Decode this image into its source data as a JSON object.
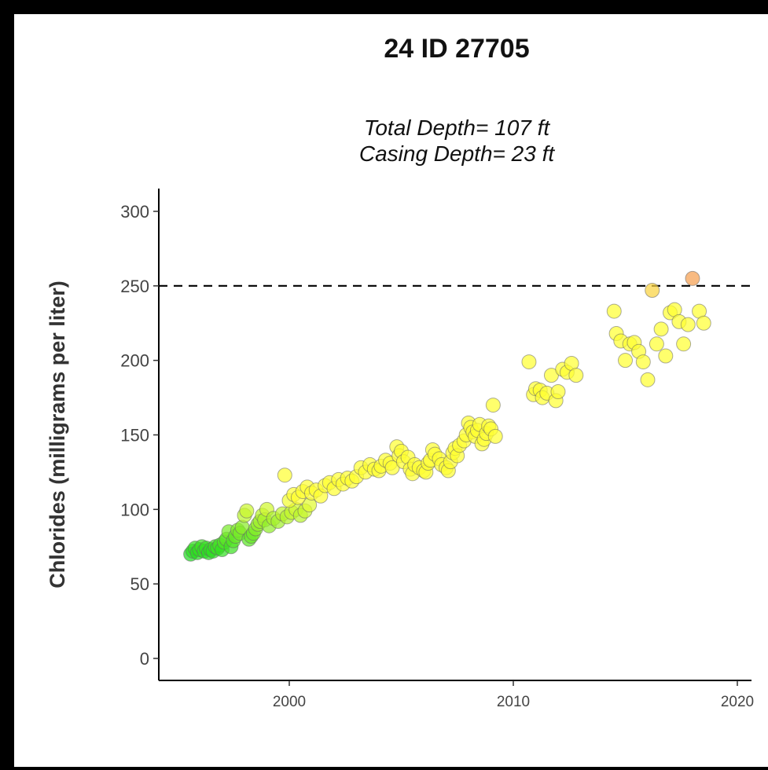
{
  "chart_data": {
    "type": "scatter",
    "title": "24 ID 27705",
    "subtitle_lines": [
      "Total Depth= 107 ft",
      "Casing Depth= 23 ft"
    ],
    "xlabel": "",
    "ylabel": "Chlorides (milligrams per liter)",
    "xlim": [
      1994.3,
      2021.0
    ],
    "ylim": [
      0,
      300
    ],
    "x_ticks": [
      2000,
      2010,
      2020
    ],
    "y_ticks": [
      0,
      50,
      100,
      150,
      200,
      250,
      300
    ],
    "reference_line": {
      "y": 250,
      "style": "dashed",
      "color": "#000000"
    },
    "color_scale": {
      "low": 70,
      "high": 255,
      "colors": [
        "#22dd22",
        "#ffff33",
        "#f5a050"
      ]
    },
    "grid": false,
    "legend": "none",
    "points": [
      [
        1995.6,
        70
      ],
      [
        1995.7,
        72
      ],
      [
        1995.8,
        74
      ],
      [
        1995.9,
        71
      ],
      [
        1996.0,
        73
      ],
      [
        1996.1,
        75
      ],
      [
        1996.2,
        72
      ],
      [
        1996.3,
        74
      ],
      [
        1996.4,
        71
      ],
      [
        1996.5,
        73
      ],
      [
        1996.6,
        72
      ],
      [
        1996.7,
        75
      ],
      [
        1996.8,
        74
      ],
      [
        1996.9,
        76
      ],
      [
        1997.0,
        73
      ],
      [
        1997.1,
        78
      ],
      [
        1997.2,
        80
      ],
      [
        1997.3,
        85
      ],
      [
        1997.4,
        75
      ],
      [
        1997.5,
        79
      ],
      [
        1997.6,
        82
      ],
      [
        1997.7,
        86
      ],
      [
        1997.8,
        84
      ],
      [
        1997.9,
        88
      ],
      [
        1998.0,
        96
      ],
      [
        1998.1,
        99
      ],
      [
        1998.2,
        80
      ],
      [
        1998.3,
        82
      ],
      [
        1998.4,
        84
      ],
      [
        1998.5,
        87
      ],
      [
        1998.6,
        90
      ],
      [
        1998.7,
        92
      ],
      [
        1998.8,
        96
      ],
      [
        1998.9,
        93
      ],
      [
        1999.0,
        100
      ],
      [
        1999.1,
        89
      ],
      [
        1999.3,
        94
      ],
      [
        1999.5,
        92
      ],
      [
        1999.7,
        97
      ],
      [
        1999.9,
        95
      ],
      [
        2000.1,
        98
      ],
      [
        2000.3,
        100
      ],
      [
        2000.5,
        96
      ],
      [
        2000.7,
        99
      ],
      [
        2000.9,
        103
      ],
      [
        1999.8,
        123
      ],
      [
        2000.0,
        106
      ],
      [
        2000.2,
        110
      ],
      [
        2000.4,
        108
      ],
      [
        2000.6,
        112
      ],
      [
        2000.8,
        115
      ],
      [
        2001.0,
        111
      ],
      [
        2001.2,
        113
      ],
      [
        2001.4,
        109
      ],
      [
        2001.6,
        116
      ],
      [
        2001.8,
        118
      ],
      [
        2002.0,
        114
      ],
      [
        2002.2,
        120
      ],
      [
        2002.4,
        117
      ],
      [
        2002.6,
        121
      ],
      [
        2002.8,
        119
      ],
      [
        2003.0,
        122
      ],
      [
        2003.2,
        128
      ],
      [
        2003.4,
        125
      ],
      [
        2003.6,
        130
      ],
      [
        2003.8,
        127
      ],
      [
        2004.0,
        126
      ],
      [
        2004.1,
        129
      ],
      [
        2004.3,
        133
      ],
      [
        2004.5,
        131
      ],
      [
        2004.6,
        128
      ],
      [
        2004.8,
        142
      ],
      [
        2004.9,
        136
      ],
      [
        2005.0,
        139
      ],
      [
        2005.1,
        132
      ],
      [
        2005.3,
        135
      ],
      [
        2005.4,
        127
      ],
      [
        2005.5,
        124
      ],
      [
        2005.6,
        130
      ],
      [
        2005.8,
        128
      ],
      [
        2006.0,
        126
      ],
      [
        2006.1,
        125
      ],
      [
        2006.2,
        131
      ],
      [
        2006.3,
        133
      ],
      [
        2006.4,
        140
      ],
      [
        2006.5,
        137
      ],
      [
        2006.7,
        134
      ],
      [
        2006.8,
        130
      ],
      [
        2007.0,
        128
      ],
      [
        2007.1,
        126
      ],
      [
        2007.2,
        132
      ],
      [
        2007.3,
        138
      ],
      [
        2007.4,
        141
      ],
      [
        2007.5,
        136
      ],
      [
        2007.6,
        143
      ],
      [
        2007.8,
        146
      ],
      [
        2007.9,
        150
      ],
      [
        2008.0,
        158
      ],
      [
        2008.1,
        155
      ],
      [
        2008.2,
        152
      ],
      [
        2008.3,
        149
      ],
      [
        2008.4,
        153
      ],
      [
        2008.5,
        157
      ],
      [
        2008.6,
        144
      ],
      [
        2008.7,
        147
      ],
      [
        2008.8,
        151
      ],
      [
        2008.9,
        156
      ],
      [
        2009.0,
        154
      ],
      [
        2009.1,
        170
      ],
      [
        2009.2,
        149
      ],
      [
        2010.7,
        199
      ],
      [
        2010.9,
        177
      ],
      [
        2011.0,
        181
      ],
      [
        2011.2,
        180
      ],
      [
        2011.3,
        175
      ],
      [
        2011.5,
        178
      ],
      [
        2011.7,
        190
      ],
      [
        2011.9,
        173
      ],
      [
        2012.0,
        179
      ],
      [
        2012.2,
        194
      ],
      [
        2012.4,
        192
      ],
      [
        2012.6,
        198
      ],
      [
        2012.8,
        190
      ],
      [
        2014.5,
        233
      ],
      [
        2014.6,
        218
      ],
      [
        2014.8,
        213
      ],
      [
        2015.0,
        200
      ],
      [
        2015.2,
        211
      ],
      [
        2015.4,
        212
      ],
      [
        2015.6,
        206
      ],
      [
        2015.8,
        199
      ],
      [
        2016.0,
        187
      ],
      [
        2016.2,
        247
      ],
      [
        2016.4,
        211
      ],
      [
        2016.6,
        221
      ],
      [
        2016.8,
        203
      ],
      [
        2017.0,
        232
      ],
      [
        2017.2,
        234
      ],
      [
        2017.4,
        226
      ],
      [
        2017.6,
        211
      ],
      [
        2017.8,
        224
      ],
      [
        2018.0,
        255
      ],
      [
        2018.3,
        233
      ],
      [
        2018.5,
        225
      ]
    ]
  }
}
